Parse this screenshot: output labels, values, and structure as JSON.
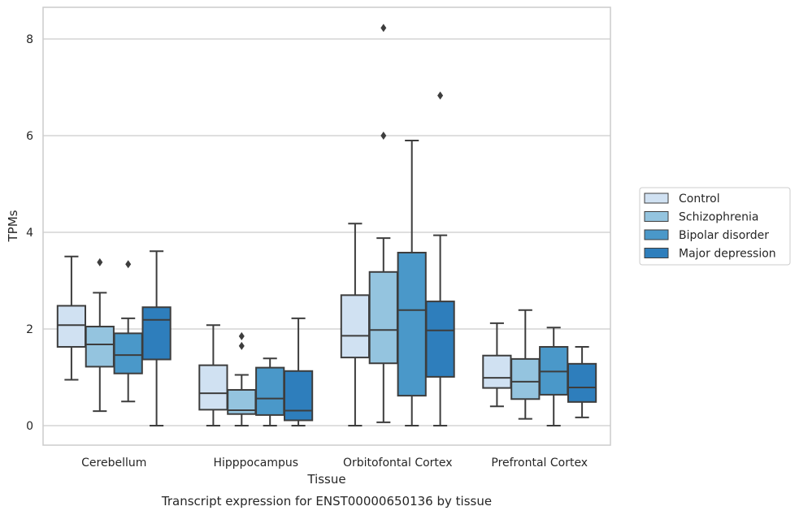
{
  "caption": "Transcript expression for ENST00000650136 by tissue",
  "chart_data": {
    "type": "box",
    "xlabel": "Tissue",
    "ylabel": "TPMs",
    "ylim": [
      -0.4,
      8.65
    ],
    "yticks": [
      0,
      2,
      4,
      6,
      8
    ],
    "grid": "horizontal",
    "legend_position": "right",
    "categories": [
      "Cerebellum",
      "Hipppocampus",
      "Orbitofontal Cortex",
      "Prefrontal Cortex"
    ],
    "series": [
      {
        "name": "Control",
        "color": "#d0e1f2",
        "boxes": [
          {
            "whisker_low": 0.95,
            "q1": 1.63,
            "median": 2.08,
            "q3": 2.48,
            "whisker_high": 3.5,
            "outliers": []
          },
          {
            "whisker_low": 0.0,
            "q1": 0.33,
            "median": 0.67,
            "q3": 1.25,
            "whisker_high": 2.08,
            "outliers": []
          },
          {
            "whisker_low": 0.0,
            "q1": 1.41,
            "median": 1.86,
            "q3": 2.7,
            "whisker_high": 4.18,
            "outliers": []
          },
          {
            "whisker_low": 0.4,
            "q1": 0.78,
            "median": 0.99,
            "q3": 1.45,
            "whisker_high": 2.12,
            "outliers": []
          }
        ]
      },
      {
        "name": "Schizophrenia",
        "color": "#94c4df",
        "boxes": [
          {
            "whisker_low": 0.3,
            "q1": 1.22,
            "median": 1.68,
            "q3": 2.05,
            "whisker_high": 2.75,
            "outliers": [
              3.38
            ]
          },
          {
            "whisker_low": 0.0,
            "q1": 0.24,
            "median": 0.32,
            "q3": 0.74,
            "whisker_high": 1.05,
            "outliers": [
              1.65,
              1.85
            ]
          },
          {
            "whisker_low": 0.07,
            "q1": 1.29,
            "median": 1.98,
            "q3": 3.18,
            "whisker_high": 3.88,
            "outliers": [
              6.0,
              8.23
            ]
          },
          {
            "whisker_low": 0.14,
            "q1": 0.55,
            "median": 0.91,
            "q3": 1.38,
            "whisker_high": 2.39,
            "outliers": []
          }
        ]
      },
      {
        "name": "Bipolar disorder",
        "color": "#4a98c9",
        "boxes": [
          {
            "whisker_low": 0.5,
            "q1": 1.08,
            "median": 1.46,
            "q3": 1.91,
            "whisker_high": 2.22,
            "outliers": [
              3.34
            ]
          },
          {
            "whisker_low": 0.0,
            "q1": 0.22,
            "median": 0.56,
            "q3": 1.2,
            "whisker_high": 1.39,
            "outliers": []
          },
          {
            "whisker_low": 0.0,
            "q1": 0.62,
            "median": 2.39,
            "q3": 3.58,
            "whisker_high": 5.9,
            "outliers": []
          },
          {
            "whisker_low": 0.0,
            "q1": 0.64,
            "median": 1.12,
            "q3": 1.63,
            "whisker_high": 2.03,
            "outliers": []
          }
        ]
      },
      {
        "name": "Major depression",
        "color": "#2e7ebc",
        "boxes": [
          {
            "whisker_low": 0.0,
            "q1": 1.37,
            "median": 2.19,
            "q3": 2.45,
            "whisker_high": 3.61,
            "outliers": []
          },
          {
            "whisker_low": 0.0,
            "q1": 0.11,
            "median": 0.31,
            "q3": 1.13,
            "whisker_high": 2.22,
            "outliers": []
          },
          {
            "whisker_low": 0.0,
            "q1": 1.01,
            "median": 1.97,
            "q3": 2.57,
            "whisker_high": 3.94,
            "outliers": [
              6.83
            ]
          },
          {
            "whisker_low": 0.17,
            "q1": 0.49,
            "median": 0.79,
            "q3": 1.28,
            "whisker_high": 1.63,
            "outliers": []
          }
        ]
      }
    ]
  }
}
